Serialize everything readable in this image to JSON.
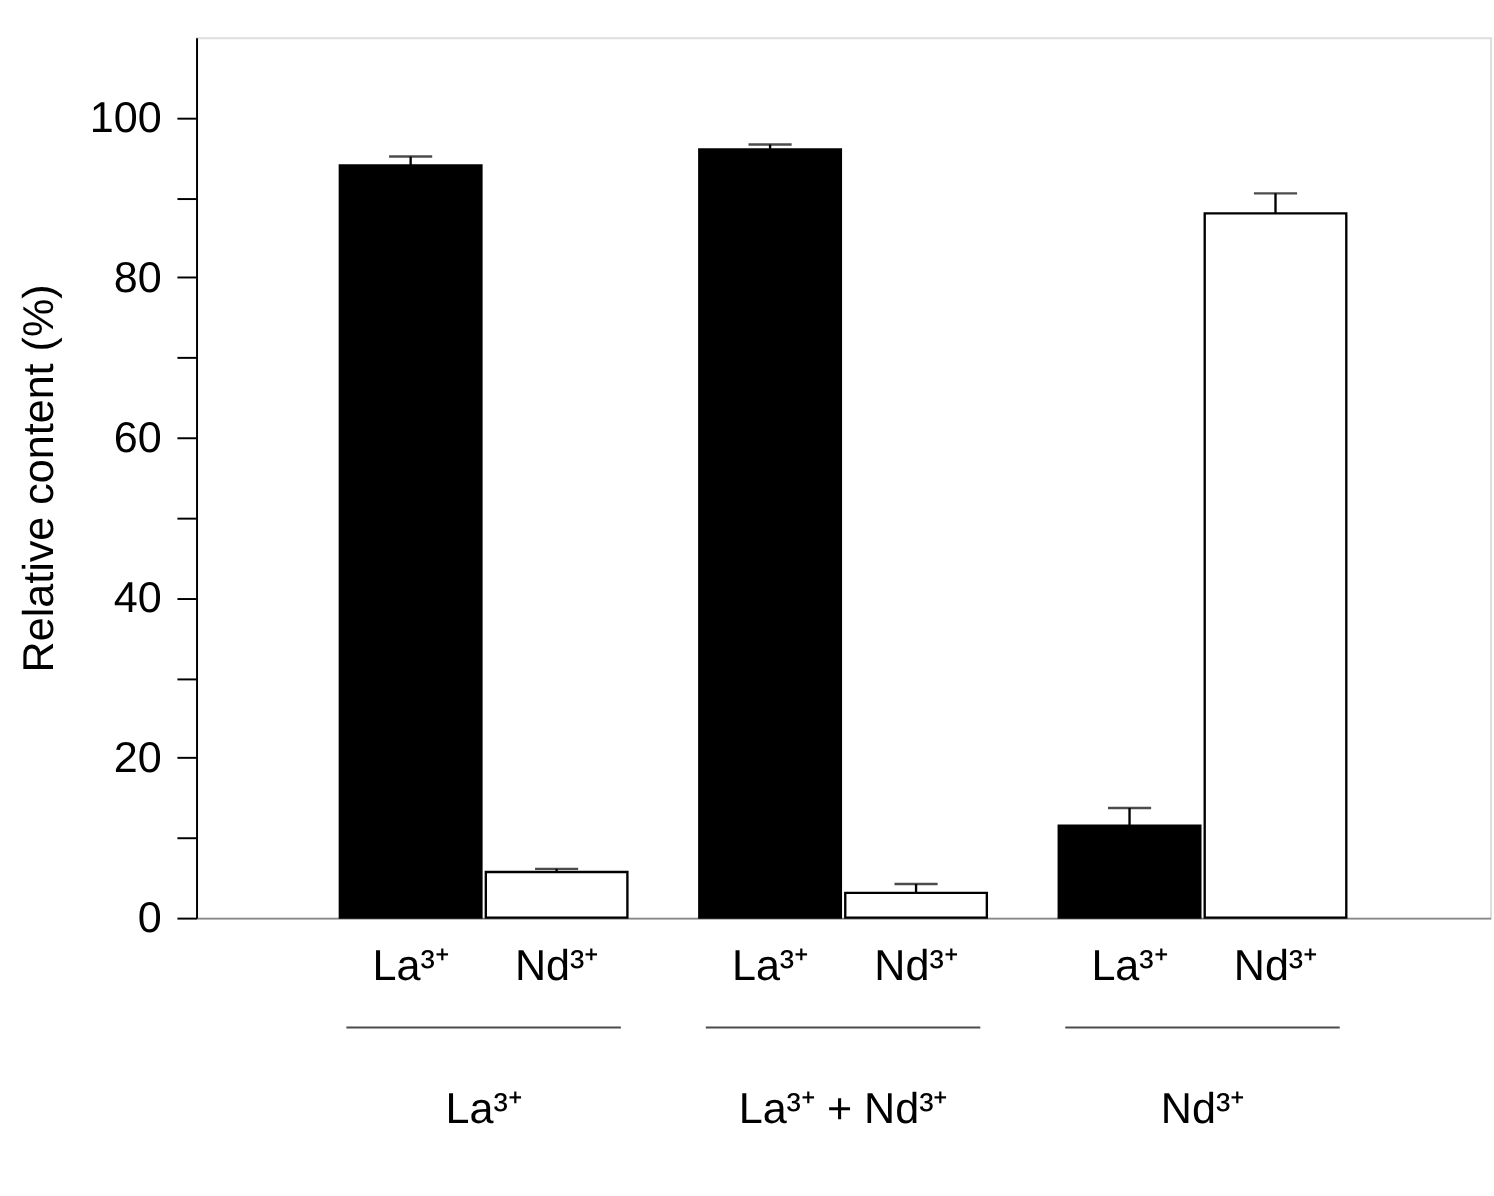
{
  "chart_data": {
    "type": "bar",
    "ylabel": "Relative content  (%)",
    "categories": [
      "La³⁺",
      "La³⁺ + Nd³⁺",
      "Nd³⁺"
    ],
    "series": [
      {
        "name": "La³⁺",
        "color": "#000000",
        "values": [
          94,
          96,
          11.5
        ],
        "errors": [
          [
            94,
            95.1
          ],
          [
            96,
            96.6
          ],
          [
            11.5,
            13.7
          ]
        ]
      },
      {
        "name": "Nd³⁺",
        "color": "#ffffff",
        "values": [
          5.7,
          3.1,
          88
        ],
        "errors": [
          [
            5.7,
            6.1
          ],
          [
            3.1,
            4.2
          ],
          [
            88,
            90.5
          ]
        ]
      }
    ],
    "ylim": [
      0,
      110
    ],
    "yticks": [
      0,
      {
        "value": 10,
        "label": null
      },
      20,
      {
        "value": 30,
        "label": null
      },
      40,
      {
        "value": 50,
        "label": null
      },
      60,
      {
        "value": 70,
        "label": null
      },
      80,
      {
        "value": 90,
        "label": null
      },
      100
    ],
    "grid": false,
    "legend": false
  }
}
